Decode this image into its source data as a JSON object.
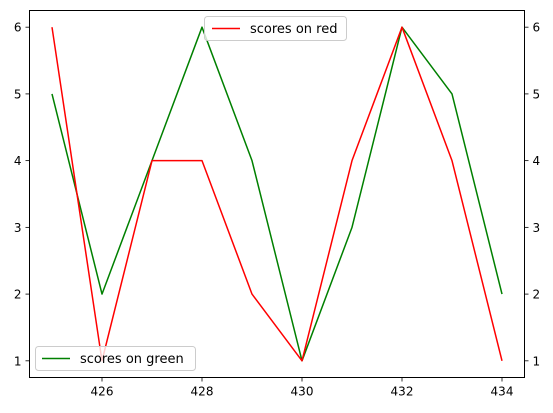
{
  "chart_data": {
    "type": "line",
    "x": [
      425,
      426,
      427,
      428,
      429,
      430,
      431,
      432,
      433,
      434
    ],
    "xticks": [
      "426",
      "428",
      "430",
      "432",
      "434"
    ],
    "xlim": [
      424.55,
      434.45
    ],
    "ylim": [
      0.75,
      6.25
    ],
    "yticks_left": [
      "1",
      "2",
      "3",
      "4",
      "5",
      "6"
    ],
    "yticks_right": [
      "1",
      "2",
      "3",
      "4",
      "5",
      "6"
    ],
    "grid": false,
    "series": [
      {
        "name": "scores on green",
        "color": "#008000",
        "axis": "left",
        "values": [
          5,
          2,
          4,
          6,
          4,
          1,
          3,
          6,
          5,
          2
        ],
        "legend_placement": "lower-left"
      },
      {
        "name": "scores on red",
        "color": "#ff0000",
        "axis": "right",
        "values": [
          6,
          1,
          4,
          4,
          2,
          1,
          4,
          6,
          4,
          1
        ],
        "legend_placement": "upper-center"
      }
    ]
  }
}
